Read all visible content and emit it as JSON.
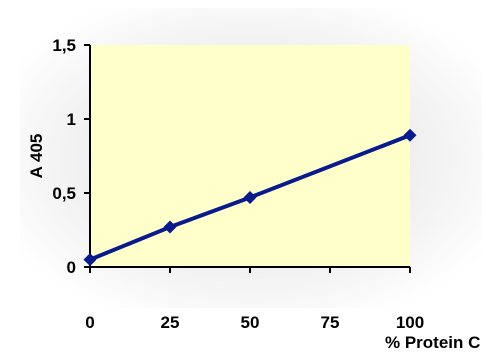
{
  "chart_data": {
    "type": "line",
    "title": "",
    "xlabel": "% Protein C",
    "ylabel": "A 405",
    "x": [
      0,
      25,
      50,
      100
    ],
    "x_tick_labels": [
      "0",
      "25",
      "50",
      "75",
      "100"
    ],
    "x_ticks": [
      0,
      25,
      50,
      75,
      100
    ],
    "xlim": [
      0,
      100
    ],
    "y_tick_labels": [
      "0",
      "0,5",
      "1",
      "1,5"
    ],
    "y_ticks": [
      0,
      0.5,
      1,
      1.5
    ],
    "ylim": [
      0,
      1.5
    ],
    "grid": false,
    "legend": "none",
    "series": [
      {
        "values": [
          0.05,
          0.27,
          0.47,
          0.89
        ]
      }
    ],
    "colors": {
      "line": "#0a1a8c",
      "plot_background": "#ffffcc",
      "axis": "#000000",
      "backdrop": "#eeeeee"
    }
  }
}
